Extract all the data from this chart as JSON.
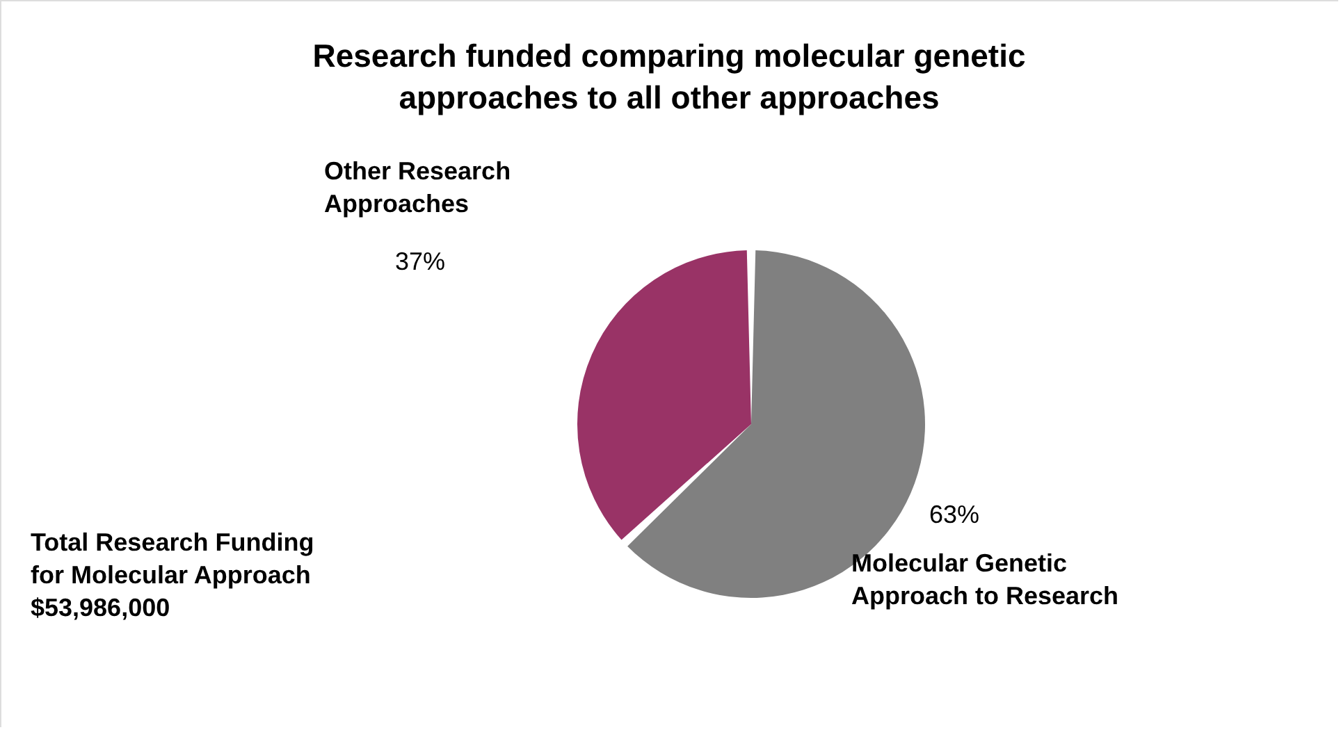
{
  "chart_data": {
    "type": "pie",
    "title": "Research funded comparing molecular genetic\napproaches to all other approaches",
    "categories": [
      "Molecular Genetic\nApproach to Research",
      "Other Research\nApproaches"
    ],
    "values": [
      63,
      37
    ],
    "colors": [
      "#808080",
      "#993366"
    ],
    "value_labels": [
      "63%",
      "37%"
    ],
    "legend": false,
    "annotations": [
      "Total Research Funding\nfor Molecular Approach\n$53,986,000"
    ]
  }
}
